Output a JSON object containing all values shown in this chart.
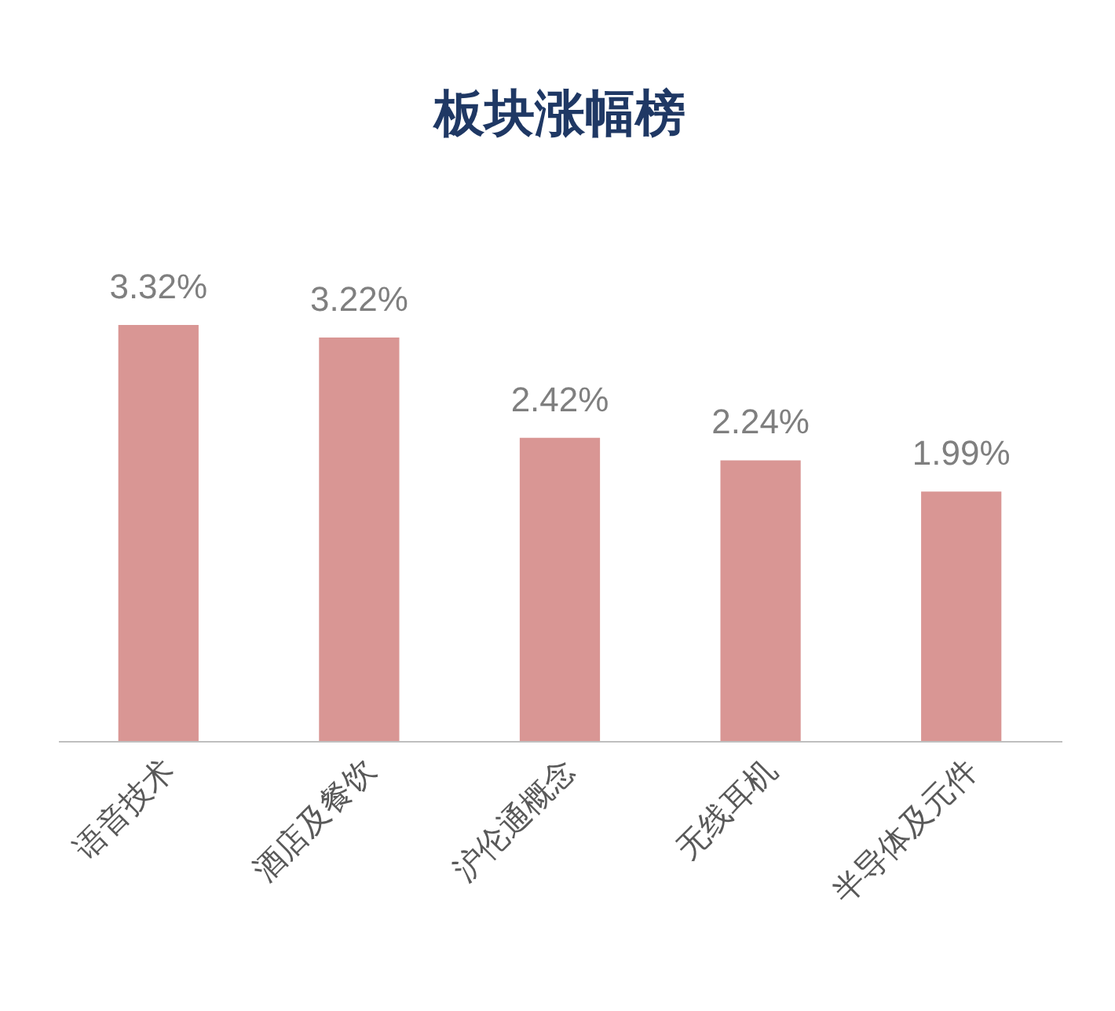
{
  "chart_data": {
    "type": "bar",
    "title": "板块涨幅榜",
    "categories": [
      "语音技术",
      "酒店及餐饮",
      "沪伦通概念",
      "无线耳机",
      "半导体及元件"
    ],
    "values": [
      3.32,
      3.22,
      2.42,
      2.24,
      1.99
    ],
    "value_labels": [
      "3.32%",
      "3.22%",
      "2.42%",
      "2.24%",
      "1.99%"
    ],
    "color": "#d99694",
    "grid": false,
    "tick_labels": "x"
  }
}
